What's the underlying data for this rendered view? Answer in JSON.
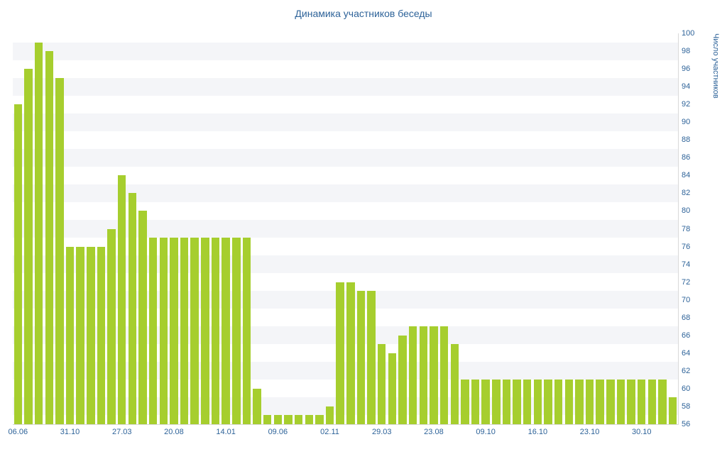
{
  "title": "Динамика участников беседы",
  "y_axis": {
    "label": "Число участников",
    "ticks": [
      "100",
      "98",
      "96",
      "94",
      "92",
      "90",
      "88",
      "86",
      "84",
      "82",
      "80",
      "78",
      "76",
      "74",
      "72",
      "70",
      "68",
      "66",
      "64",
      "62",
      "60",
      "58",
      "56"
    ]
  },
  "x_axis": {
    "labels": [
      "06.06",
      "31.10",
      "27.03",
      "20.08",
      "14.01",
      "09.06",
      "02.11",
      "29.03",
      "23.08",
      "09.10",
      "16.10",
      "23.10",
      "30.10"
    ],
    "label_every": 5
  },
  "chart_data": {
    "type": "bar",
    "title": "Динамика участников беседы",
    "xlabel": "",
    "ylabel": "Число участников",
    "ylim": [
      56,
      100
    ],
    "y_tick_step": 2,
    "grid": "horizontal-stripes",
    "legend": "none",
    "x_tick_labels": [
      "06.06",
      "31.10",
      "27.03",
      "20.08",
      "14.01",
      "09.06",
      "02.11",
      "29.03",
      "23.08",
      "09.10",
      "16.10",
      "23.10",
      "30.10"
    ],
    "x_tick_every": 5,
    "values": [
      92,
      96,
      99,
      98,
      95,
      76,
      76,
      76,
      76,
      78,
      84,
      82,
      80,
      77,
      77,
      77,
      77,
      77,
      77,
      77,
      77,
      77,
      77,
      60,
      57,
      57,
      57,
      57,
      57,
      57,
      58,
      72,
      72,
      71,
      71,
      65,
      64,
      66,
      67,
      67,
      67,
      67,
      65,
      61,
      61,
      61,
      61,
      61,
      61,
      61,
      61,
      61,
      61,
      61,
      61,
      61,
      61,
      61,
      61,
      61,
      61,
      61,
      61,
      59
    ],
    "bar_color": "#a6ce2e",
    "stripe_color": "#f4f5f8",
    "text_color": "#2e6399"
  }
}
